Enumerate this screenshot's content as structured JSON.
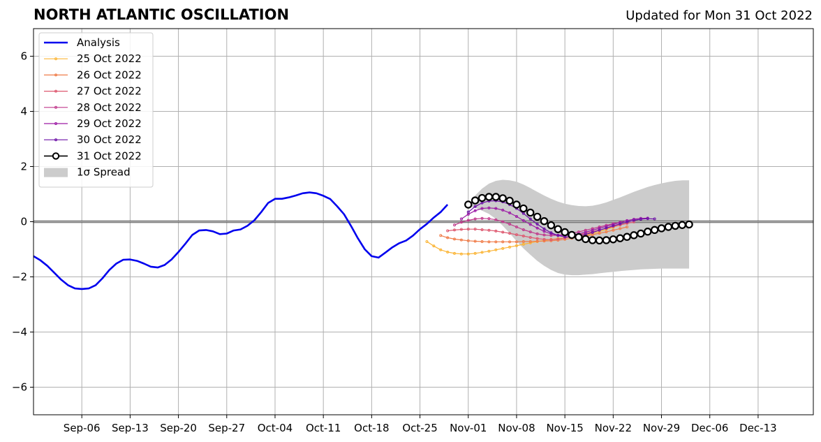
{
  "header": {
    "title": "NORTH ATLANTIC OSCILLATION",
    "updated": "Updated for Mon 31 Oct 2022"
  },
  "chart_data": {
    "type": "line",
    "title": "NORTH ATLANTIC OSCILLATION",
    "xlabel": "",
    "ylabel": "",
    "xlim": [
      "2022-08-30",
      "2022-12-21"
    ],
    "ylim": [
      -7,
      7
    ],
    "grid": true,
    "legend_position": "top-left",
    "x_ticks": [
      "Sep-06",
      "Sep-13",
      "Sep-20",
      "Sep-27",
      "Oct-04",
      "Oct-11",
      "Oct-18",
      "Oct-25",
      "Nov-01",
      "Nov-08",
      "Nov-15",
      "Nov-22",
      "Nov-29",
      "Dec-06",
      "Dec-13"
    ],
    "x_tick_dates": [
      "2022-09-06",
      "2022-09-13",
      "2022-09-20",
      "2022-09-27",
      "2022-10-04",
      "2022-10-11",
      "2022-10-18",
      "2022-10-25",
      "2022-11-01",
      "2022-11-08",
      "2022-11-15",
      "2022-11-22",
      "2022-11-29",
      "2022-12-06",
      "2022-12-13"
    ],
    "y_ticks": [
      -6,
      -4,
      -2,
      0,
      2,
      4,
      6
    ],
    "y_tick_labels": [
      "−6",
      "−4",
      "−2",
      "0",
      "2",
      "4",
      "6"
    ],
    "zero_line": true,
    "analysis": {
      "name": "Analysis",
      "color": "#0000ee",
      "start_date": "2022-08-30",
      "values": [
        -1.25,
        -1.4,
        -1.6,
        -1.85,
        -2.1,
        -2.3,
        -2.42,
        -2.44,
        -2.42,
        -2.3,
        -2.05,
        -1.75,
        -1.52,
        -1.38,
        -1.37,
        -1.42,
        -1.52,
        -1.63,
        -1.66,
        -1.57,
        -1.37,
        -1.1,
        -0.8,
        -0.48,
        -0.32,
        -0.3,
        -0.35,
        -0.45,
        -0.43,
        -0.32,
        -0.28,
        -0.15,
        0.05,
        0.35,
        0.68,
        0.83,
        0.83,
        0.88,
        0.95,
        1.03,
        1.06,
        1.03,
        0.94,
        0.82,
        0.56,
        0.27,
        -0.15,
        -0.6,
        -1.0,
        -1.25,
        -1.3,
        -1.12,
        -0.93,
        -0.78,
        -0.68,
        -0.5,
        -0.27,
        -0.08,
        0.15,
        0.35,
        0.62
      ]
    },
    "forecasts": [
      {
        "name": "25 Oct 2022",
        "color": "#fbb536",
        "start_date": "2022-10-26",
        "values": [
          -0.72,
          -0.88,
          -1.02,
          -1.1,
          -1.15,
          -1.17,
          -1.17,
          -1.15,
          -1.11,
          -1.07,
          -1.02,
          -0.97,
          -0.92,
          -0.87,
          -0.82,
          -0.77,
          -0.72,
          -0.68,
          -0.64,
          -0.61,
          -0.58,
          -0.55,
          -0.52,
          -0.48,
          -0.43,
          -0.36,
          -0.28,
          -0.2,
          -0.12,
          -0.05
        ]
      },
      {
        "name": "26 Oct 2022",
        "color": "#f07d4a",
        "start_date": "2022-10-28",
        "values": [
          -0.5,
          -0.58,
          -0.63,
          -0.66,
          -0.69,
          -0.71,
          -0.72,
          -0.73,
          -0.73,
          -0.73,
          -0.73,
          -0.73,
          -0.72,
          -0.72,
          -0.71,
          -0.7,
          -0.69,
          -0.67,
          -0.64,
          -0.6,
          -0.56,
          -0.52,
          -0.47,
          -0.42,
          -0.37,
          -0.31,
          -0.25,
          -0.19
        ]
      },
      {
        "name": "27 Oct 2022",
        "color": "#de5970",
        "start_date": "2022-10-29",
        "values": [
          -0.33,
          -0.3,
          -0.28,
          -0.27,
          -0.27,
          -0.29,
          -0.31,
          -0.34,
          -0.38,
          -0.42,
          -0.47,
          -0.52,
          -0.57,
          -0.61,
          -0.64,
          -0.65,
          -0.63,
          -0.59,
          -0.54,
          -0.48,
          -0.42,
          -0.36,
          -0.3,
          -0.24,
          -0.18,
          -0.12,
          -0.06,
          -0.01
        ]
      },
      {
        "name": "28 Oct 2022",
        "color": "#c0398b",
        "start_date": "2022-10-30",
        "values": [
          -0.12,
          -0.02,
          0.05,
          0.1,
          0.12,
          0.11,
          0.07,
          0.0,
          -0.09,
          -0.19,
          -0.29,
          -0.37,
          -0.44,
          -0.48,
          -0.5,
          -0.49,
          -0.46,
          -0.42,
          -0.37,
          -0.31,
          -0.25,
          -0.19,
          -0.13,
          -0.07,
          -0.02,
          0.03
        ]
      },
      {
        "name": "29 Oct 2022",
        "color": "#9c1ba5",
        "start_date": "2022-10-31",
        "values": [
          0.1,
          0.27,
          0.4,
          0.48,
          0.5,
          0.48,
          0.42,
          0.32,
          0.19,
          0.04,
          -0.1,
          -0.23,
          -0.35,
          -0.44,
          -0.49,
          -0.5,
          -0.48,
          -0.44,
          -0.38,
          -0.31,
          -0.24,
          -0.17,
          -0.1,
          -0.03,
          0.04,
          0.09,
          0.12,
          0.13
        ]
      },
      {
        "name": "30 Oct 2022",
        "color": "#6b0fa6",
        "start_date": "2022-11-01",
        "values": [
          0.35,
          0.55,
          0.68,
          0.75,
          0.76,
          0.72,
          0.62,
          0.48,
          0.3,
          0.1,
          -0.09,
          -0.26,
          -0.4,
          -0.5,
          -0.55,
          -0.55,
          -0.52,
          -0.46,
          -0.39,
          -0.31,
          -0.23,
          -0.15,
          -0.08,
          -0.01,
          0.05,
          0.09,
          0.11,
          0.1
        ]
      },
      {
        "name": "31 Oct 2022",
        "color": "#000000",
        "start_date": "2022-11-01",
        "markers": "open-circle",
        "values": [
          0.62,
          0.77,
          0.86,
          0.9,
          0.9,
          0.85,
          0.76,
          0.62,
          0.48,
          0.33,
          0.18,
          0.02,
          -0.13,
          -0.27,
          -0.38,
          -0.48,
          -0.56,
          -0.63,
          -0.67,
          -0.68,
          -0.67,
          -0.64,
          -0.6,
          -0.55,
          -0.49,
          -0.43,
          -0.36,
          -0.3,
          -0.24,
          -0.19,
          -0.15,
          -0.12,
          -0.1
        ]
      }
    ],
    "spread": {
      "name": "1σ Spread",
      "color": "#cccccc",
      "start_date": "2022-11-01",
      "upper": [
        0.55,
        0.95,
        1.2,
        1.38,
        1.48,
        1.52,
        1.5,
        1.45,
        1.35,
        1.22,
        1.08,
        0.95,
        0.83,
        0.73,
        0.65,
        0.6,
        0.57,
        0.56,
        0.58,
        0.63,
        0.7,
        0.79,
        0.88,
        0.98,
        1.08,
        1.17,
        1.26,
        1.33,
        1.39,
        1.44,
        1.48,
        1.5,
        1.5
      ],
      "lower": [
        0.55,
        0.5,
        0.4,
        0.28,
        0.1,
        -0.15,
        -0.42,
        -0.7,
        -0.97,
        -1.2,
        -1.42,
        -1.6,
        -1.75,
        -1.86,
        -1.92,
        -1.94,
        -1.94,
        -1.92,
        -1.9,
        -1.87,
        -1.84,
        -1.82,
        -1.79,
        -1.77,
        -1.75,
        -1.73,
        -1.72,
        -1.71,
        -1.7,
        -1.7,
        -1.7,
        -1.7,
        -1.7
      ]
    }
  }
}
